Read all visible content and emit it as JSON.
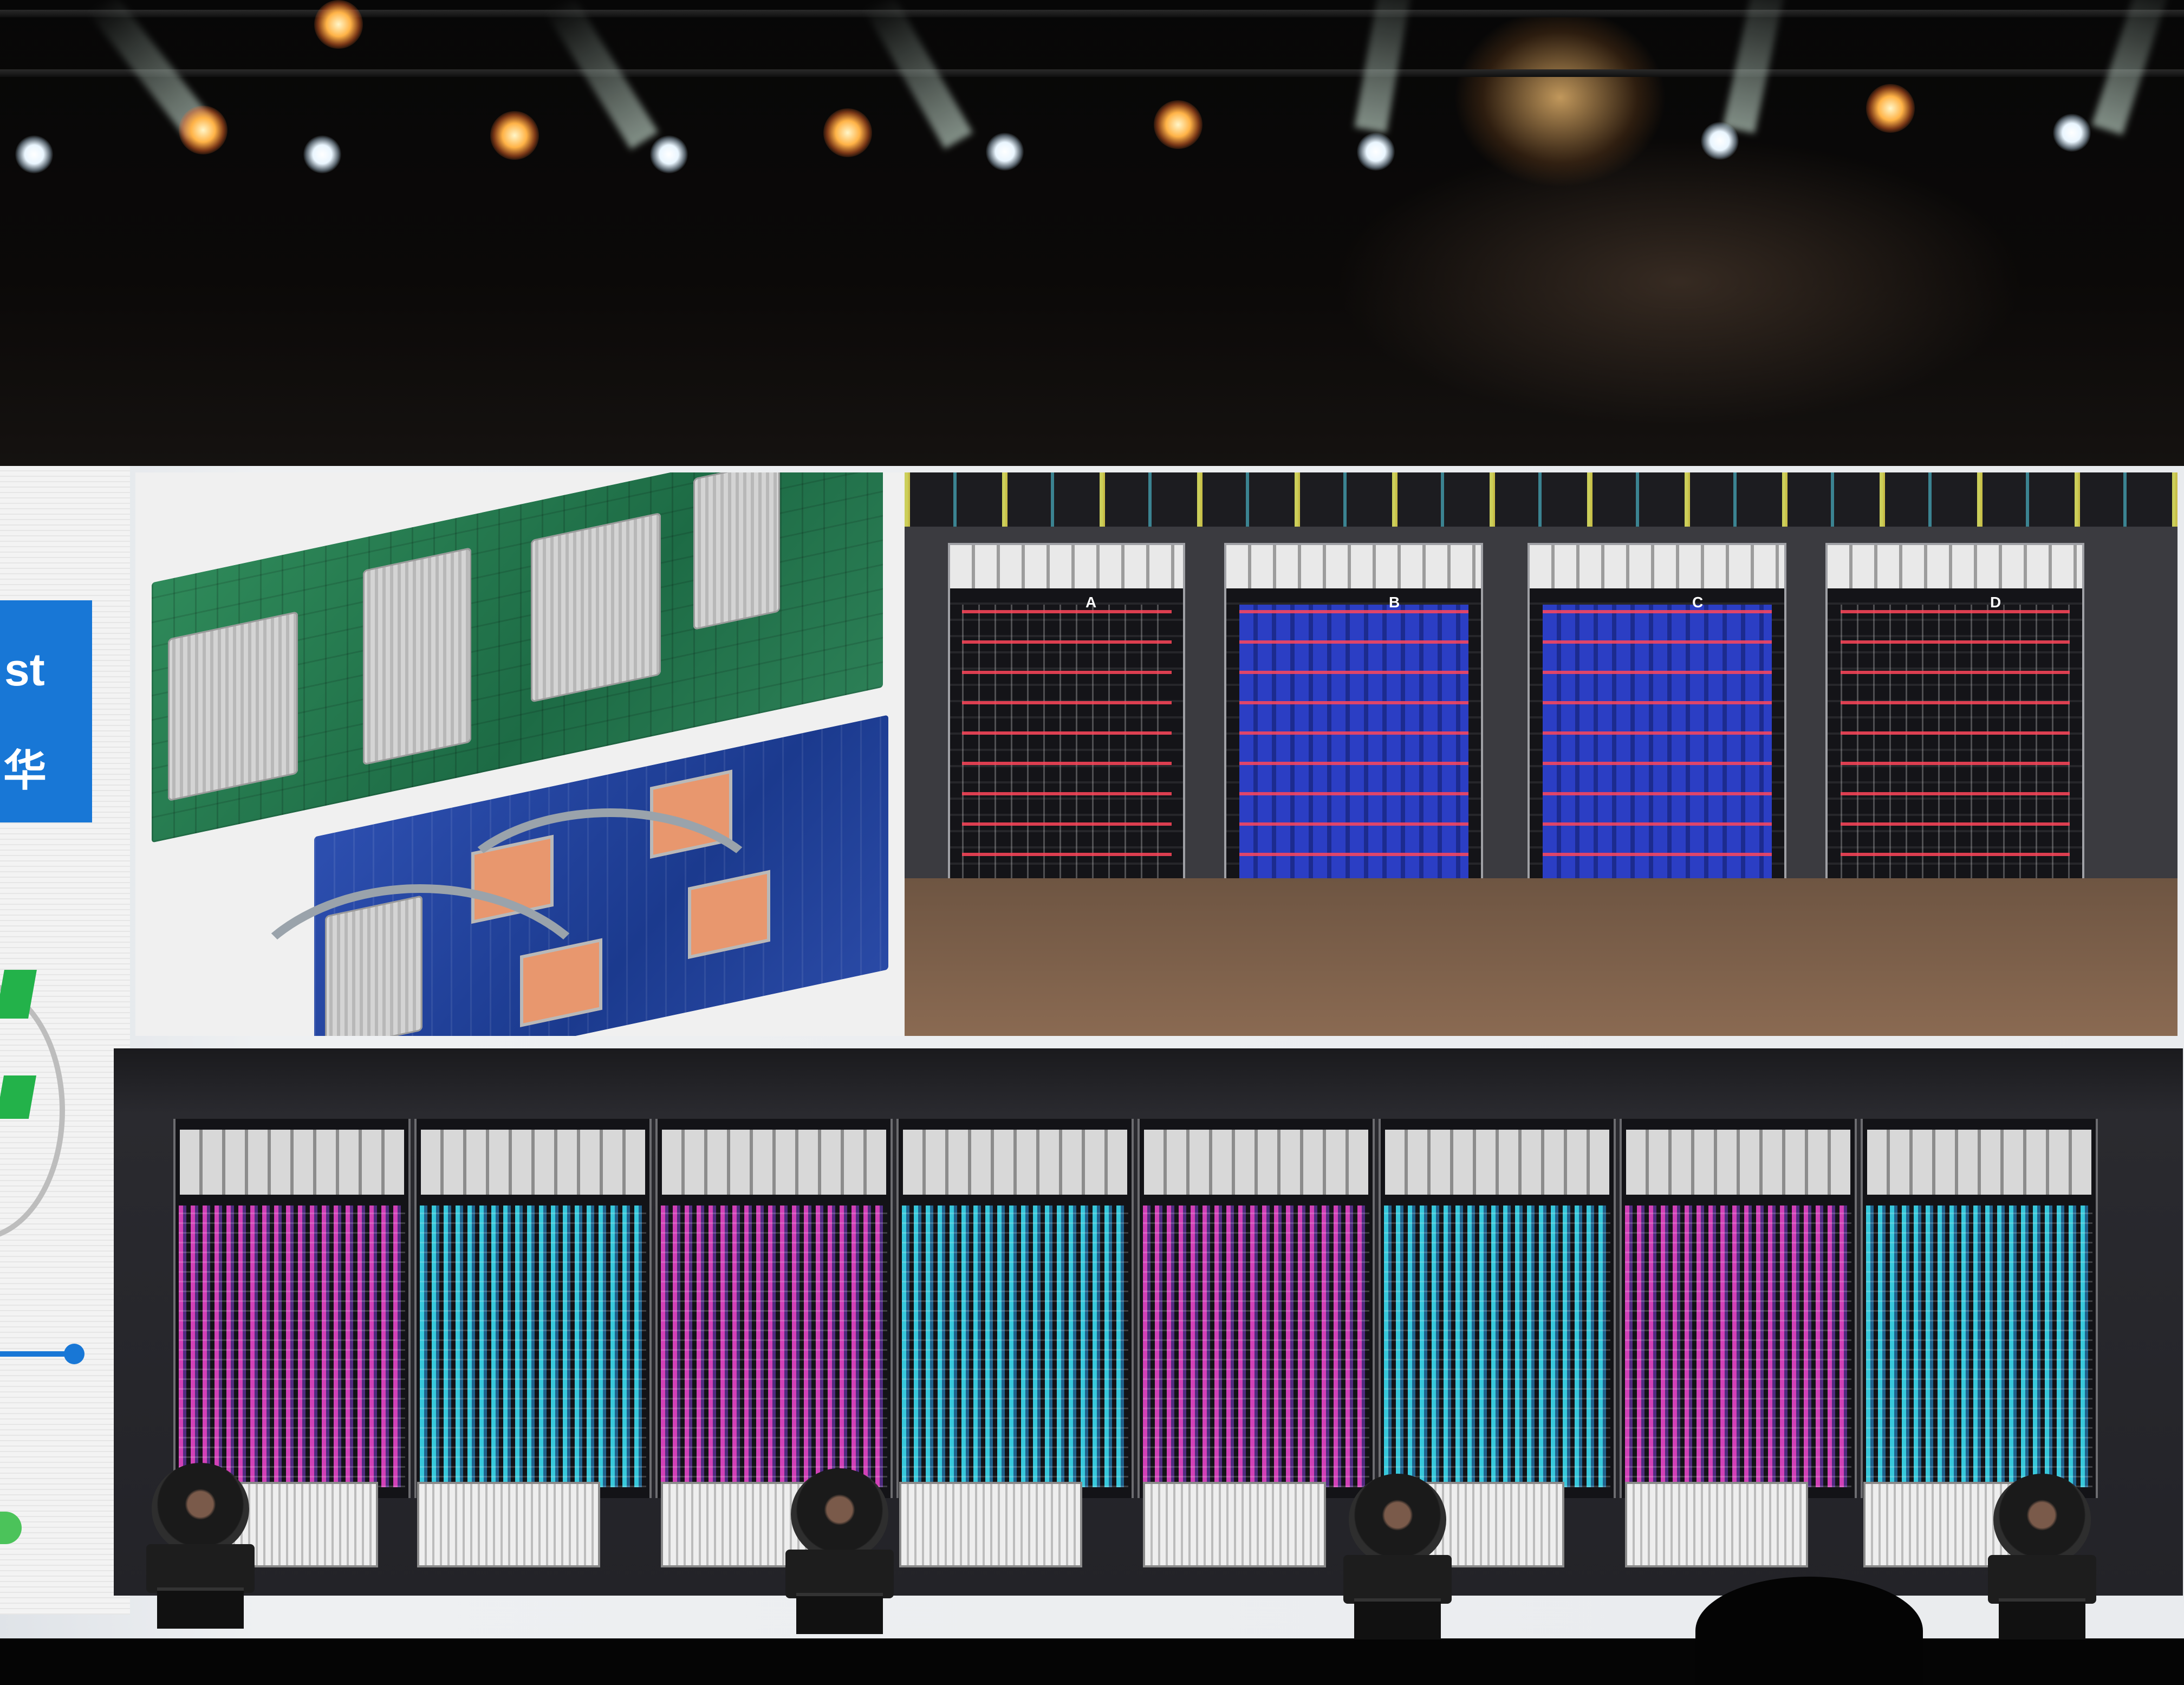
{
  "scene": {
    "description_kind": "photo of a presentation screen on stage",
    "sidebar_text": {
      "fragment_1": "st",
      "fragment_2": "华"
    }
  },
  "photos": {
    "boards": {
      "label": ""
    },
    "pod_small": {
      "rack_labels": [
        "A",
        "B",
        "C",
        "D"
      ]
    },
    "pod_big": {
      "rack_count": 8
    }
  },
  "colors": {
    "accent_blue": "#1877d6",
    "accent_green": "#23b24a",
    "cable_red": "#ff465a",
    "cable_magenta": "#e646c8",
    "cable_cyan": "#3cdcf0"
  }
}
